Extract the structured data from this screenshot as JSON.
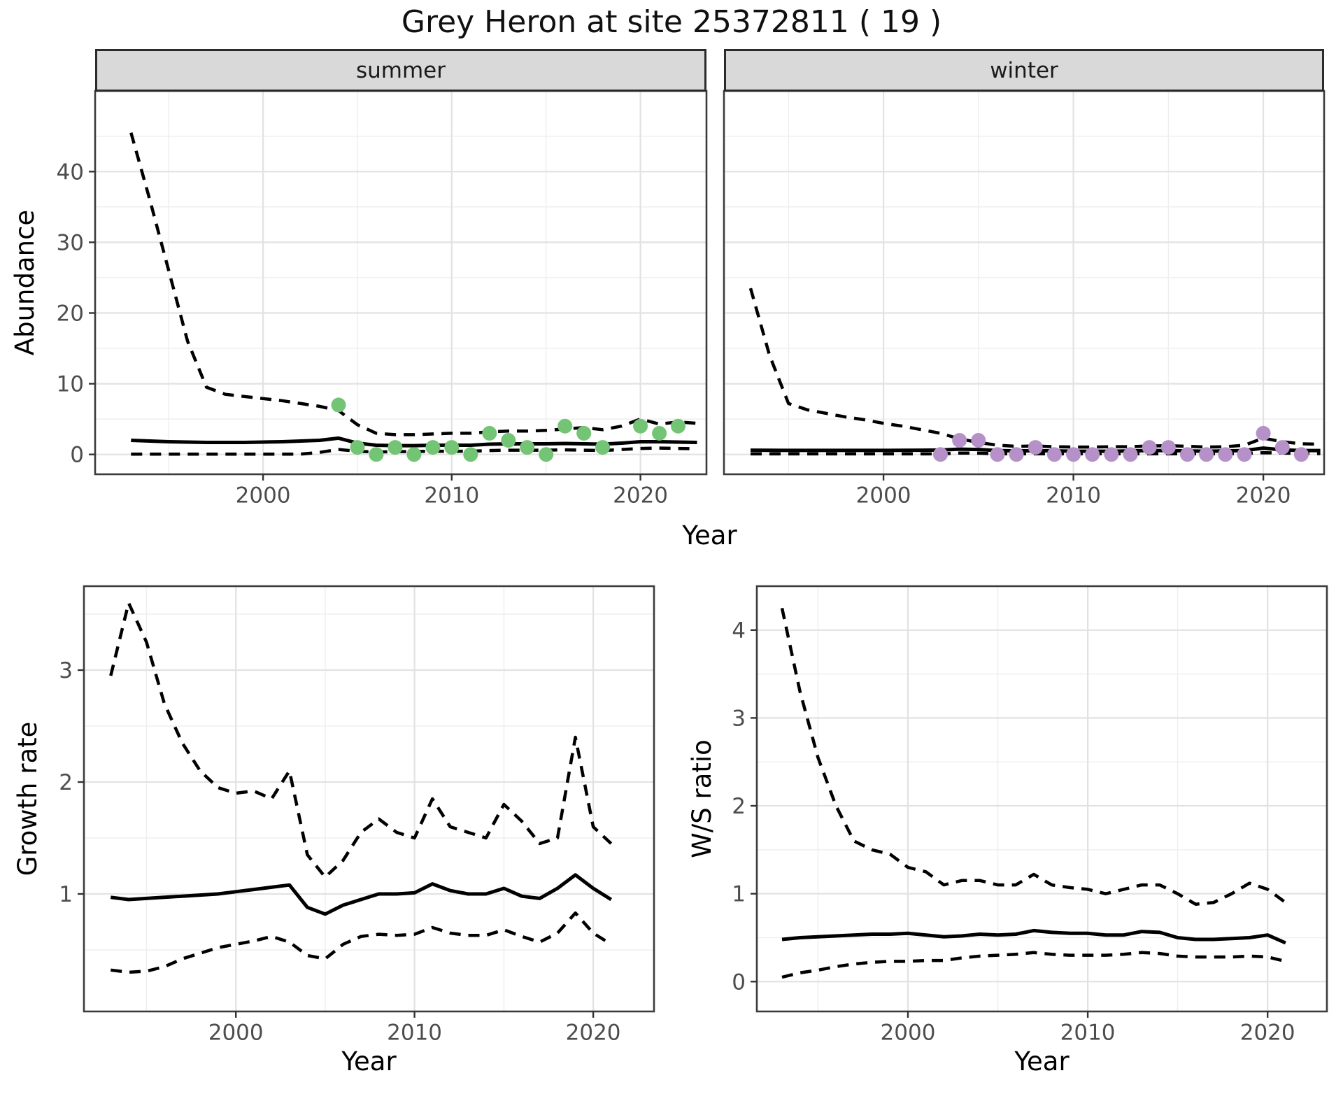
{
  "title": "Grey Heron at site 25372811 ( 19 )",
  "colors": {
    "summer_points": "#74c476",
    "winter_points": "#b691c9",
    "line": "#000000",
    "strip_bg": "#d9d9d9",
    "tick_label": "#4d4d4d",
    "grid_major": "#e2e2e2",
    "grid_minor": "#efefef",
    "panel_border": "#3c3c3c"
  },
  "chart_data": [
    {
      "id": "abundance-summer",
      "type": "line",
      "facet_label": "summer",
      "xlabel": "Year",
      "ylabel": "Abundance",
      "xlim": [
        1991.1,
        2023.5
      ],
      "ylim": [
        -2.8,
        51.4
      ],
      "xticks": [
        2000,
        2010,
        2020
      ],
      "yticks": [
        0,
        10,
        20,
        30,
        40
      ],
      "x": [
        1993,
        1994,
        1995,
        1996,
        1997,
        1998,
        1999,
        2000,
        2001,
        2002,
        2003,
        2004,
        2005,
        2006,
        2007,
        2008,
        2009,
        2010,
        2011,
        2012,
        2013,
        2014,
        2015,
        2016,
        2017,
        2018,
        2019,
        2020,
        2021,
        2022,
        2023
      ],
      "series": [
        {
          "name": "upper_ci",
          "style": "dashed",
          "values": [
            45.5,
            36,
            26,
            16,
            9.5,
            8.5,
            8.2,
            7.9,
            7.6,
            7.2,
            6.8,
            6.2,
            4.2,
            3.0,
            2.8,
            2.8,
            2.9,
            3.0,
            3.0,
            3.2,
            3.3,
            3.3,
            3.4,
            3.6,
            3.8,
            3.5,
            4.0,
            5.0,
            4.3,
            4.6,
            4.4
          ]
        },
        {
          "name": "median",
          "style": "solid",
          "values": [
            2.0,
            1.9,
            1.8,
            1.75,
            1.7,
            1.7,
            1.7,
            1.75,
            1.8,
            1.9,
            2.0,
            2.3,
            1.6,
            1.3,
            1.25,
            1.25,
            1.3,
            1.3,
            1.3,
            1.45,
            1.5,
            1.5,
            1.5,
            1.55,
            1.5,
            1.45,
            1.6,
            1.8,
            1.8,
            1.75,
            1.7
          ]
        },
        {
          "name": "lower_ci",
          "style": "dashed",
          "values": [
            0.05,
            0.05,
            0.05,
            0.05,
            0.05,
            0.05,
            0.05,
            0.05,
            0.05,
            0.05,
            0.3,
            0.7,
            0.45,
            0.35,
            0.4,
            0.4,
            0.45,
            0.45,
            0.45,
            0.55,
            0.6,
            0.6,
            0.6,
            0.65,
            0.6,
            0.55,
            0.7,
            0.85,
            0.9,
            0.85,
            0.8
          ]
        }
      ],
      "points": {
        "name": "observed-counts-summer",
        "color_key": "summer_points",
        "x": [
          2004,
          2005,
          2006,
          2007,
          2008,
          2009,
          2010,
          2011,
          2012,
          2013,
          2014,
          2015,
          2016,
          2017,
          2018,
          2020,
          2021,
          2022
        ],
        "y": [
          7,
          1,
          0,
          1,
          0,
          1,
          1,
          0,
          3,
          2,
          1,
          0,
          4,
          3,
          1,
          4,
          3,
          4
        ]
      }
    },
    {
      "id": "abundance-winter",
      "type": "line",
      "facet_label": "winter",
      "xlabel": "Year",
      "ylabel": "Abundance",
      "xlim": [
        1991.6,
        2023.2
      ],
      "ylim": [
        -2.8,
        51.4
      ],
      "xticks": [
        2000,
        2010,
        2020
      ],
      "yticks": [
        0,
        10,
        20,
        30,
        40
      ],
      "x": [
        1993,
        1994,
        1995,
        1996,
        1997,
        1998,
        1999,
        2000,
        2001,
        2002,
        2003,
        2004,
        2005,
        2006,
        2007,
        2008,
        2009,
        2010,
        2011,
        2012,
        2013,
        2014,
        2015,
        2016,
        2017,
        2018,
        2019,
        2020,
        2021,
        2022,
        2023
      ],
      "series": [
        {
          "name": "upper_ci",
          "style": "dashed",
          "values": [
            23.5,
            14,
            7.2,
            6.3,
            5.8,
            5.3,
            4.9,
            4.4,
            4.0,
            3.5,
            3.0,
            2.2,
            1.7,
            1.3,
            1.15,
            1.2,
            1.1,
            1.05,
            1.05,
            1.1,
            1.1,
            1.2,
            1.25,
            1.15,
            1.05,
            1.1,
            1.3,
            2.3,
            1.8,
            1.5,
            1.45
          ]
        },
        {
          "name": "median",
          "style": "solid",
          "values": [
            0.6,
            0.58,
            0.57,
            0.57,
            0.57,
            0.57,
            0.57,
            0.57,
            0.58,
            0.6,
            0.62,
            0.75,
            0.7,
            0.55,
            0.5,
            0.52,
            0.5,
            0.45,
            0.45,
            0.45,
            0.5,
            0.55,
            0.55,
            0.5,
            0.45,
            0.5,
            0.55,
            0.9,
            0.65,
            0.55,
            0.55
          ]
        },
        {
          "name": "lower_ci",
          "style": "dashed",
          "values": [
            0.08,
            0.08,
            0.08,
            0.08,
            0.08,
            0.08,
            0.08,
            0.08,
            0.08,
            0.08,
            0.08,
            0.2,
            0.18,
            0.1,
            0.1,
            0.1,
            0.1,
            0.1,
            0.1,
            0.1,
            0.1,
            0.1,
            0.1,
            0.1,
            0.1,
            0.1,
            0.12,
            0.25,
            0.2,
            0.15,
            0.12
          ]
        }
      ],
      "points": {
        "name": "observed-counts-winter",
        "color_key": "winter_points",
        "x": [
          2003,
          2004,
          2005,
          2006,
          2007,
          2008,
          2009,
          2010,
          2011,
          2012,
          2013,
          2014,
          2015,
          2016,
          2017,
          2018,
          2019,
          2020,
          2021,
          2022
        ],
        "y": [
          0,
          2,
          2,
          0,
          0,
          1,
          0,
          0,
          0,
          0,
          0,
          1,
          1,
          0,
          0,
          0,
          0,
          3,
          1,
          0
        ]
      }
    },
    {
      "id": "growth-rate",
      "type": "line",
      "facet_label": "",
      "xlabel": "Year",
      "ylabel": "Growth rate",
      "xlim": [
        1991.5,
        2023.4
      ],
      "ylim": [
        -0.05,
        3.75
      ],
      "xticks": [
        2000,
        2010,
        2020
      ],
      "yticks": [
        1,
        2,
        3
      ],
      "x": [
        1993,
        1994,
        1995,
        1996,
        1997,
        1998,
        1999,
        2000,
        2001,
        2002,
        2003,
        2004,
        2005,
        2006,
        2007,
        2008,
        2009,
        2010,
        2011,
        2012,
        2013,
        2014,
        2015,
        2016,
        2017,
        2018,
        2019,
        2020,
        2021
      ],
      "series": [
        {
          "name": "upper_ci",
          "style": "dashed",
          "values": [
            2.95,
            3.6,
            3.25,
            2.7,
            2.35,
            2.1,
            1.95,
            1.9,
            1.92,
            1.85,
            2.1,
            1.35,
            1.15,
            1.3,
            1.55,
            1.67,
            1.55,
            1.5,
            1.85,
            1.6,
            1.55,
            1.5,
            1.8,
            1.65,
            1.45,
            1.5,
            2.4,
            1.6,
            1.45
          ]
        },
        {
          "name": "median",
          "style": "solid",
          "values": [
            0.97,
            0.95,
            0.96,
            0.97,
            0.98,
            0.99,
            1.0,
            1.02,
            1.04,
            1.06,
            1.08,
            0.88,
            0.82,
            0.9,
            0.95,
            1.0,
            1.0,
            1.01,
            1.09,
            1.03,
            1.0,
            1.0,
            1.05,
            0.98,
            0.96,
            1.05,
            1.17,
            1.05,
            0.95
          ]
        },
        {
          "name": "lower_ci",
          "style": "dashed",
          "values": [
            0.32,
            0.3,
            0.31,
            0.35,
            0.42,
            0.47,
            0.52,
            0.55,
            0.58,
            0.62,
            0.57,
            0.45,
            0.42,
            0.55,
            0.62,
            0.64,
            0.63,
            0.64,
            0.7,
            0.65,
            0.63,
            0.63,
            0.68,
            0.62,
            0.57,
            0.65,
            0.83,
            0.65,
            0.55
          ]
        }
      ]
    },
    {
      "id": "ws-ratio",
      "type": "line",
      "facet_label": "",
      "xlabel": "Year",
      "ylabel": "W/S ratio",
      "xlim": [
        1991.6,
        2023.3
      ],
      "ylim": [
        -0.34,
        4.5
      ],
      "xticks": [
        2000,
        2010,
        2020
      ],
      "yticks": [
        0,
        1,
        2,
        3,
        4
      ],
      "x": [
        1993,
        1994,
        1995,
        1996,
        1997,
        1998,
        1999,
        2000,
        2001,
        2002,
        2003,
        2004,
        2005,
        2006,
        2007,
        2008,
        2009,
        2010,
        2011,
        2012,
        2013,
        2014,
        2015,
        2016,
        2017,
        2018,
        2019,
        2020,
        2021
      ],
      "series": [
        {
          "name": "upper_ci",
          "style": "dashed",
          "values": [
            4.25,
            3.3,
            2.55,
            2.0,
            1.6,
            1.5,
            1.45,
            1.3,
            1.25,
            1.1,
            1.15,
            1.15,
            1.1,
            1.1,
            1.22,
            1.1,
            1.07,
            1.05,
            1.0,
            1.05,
            1.1,
            1.1,
            1.0,
            0.88,
            0.9,
            1.0,
            1.12,
            1.05,
            0.9
          ]
        },
        {
          "name": "median",
          "style": "solid",
          "values": [
            0.48,
            0.5,
            0.51,
            0.52,
            0.53,
            0.54,
            0.54,
            0.55,
            0.53,
            0.51,
            0.52,
            0.54,
            0.53,
            0.54,
            0.58,
            0.56,
            0.55,
            0.55,
            0.53,
            0.53,
            0.57,
            0.56,
            0.5,
            0.48,
            0.48,
            0.49,
            0.5,
            0.53,
            0.44
          ]
        },
        {
          "name": "lower_ci",
          "style": "dashed",
          "values": [
            0.05,
            0.1,
            0.13,
            0.17,
            0.2,
            0.22,
            0.23,
            0.23,
            0.24,
            0.24,
            0.27,
            0.29,
            0.3,
            0.31,
            0.33,
            0.31,
            0.3,
            0.3,
            0.3,
            0.31,
            0.33,
            0.32,
            0.29,
            0.28,
            0.28,
            0.28,
            0.29,
            0.28,
            0.23
          ]
        }
      ]
    }
  ]
}
